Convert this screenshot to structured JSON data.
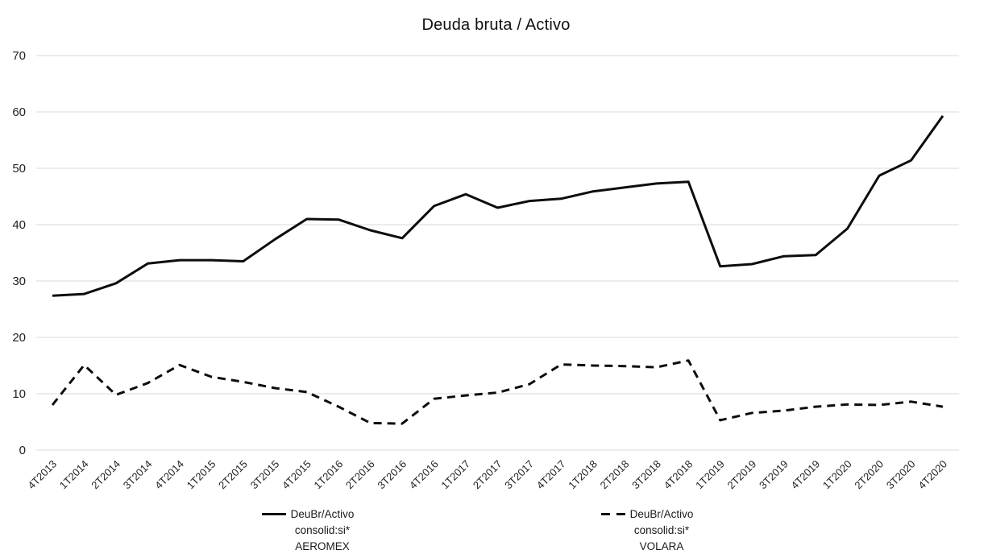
{
  "title": "Deuda bruta / Activo",
  "chart_data": {
    "type": "line",
    "title": "Deuda bruta / Activo",
    "xlabel": "",
    "ylabel": "",
    "ylim": [
      0,
      70
    ],
    "yticks": [
      0,
      10,
      20,
      30,
      40,
      50,
      60,
      70
    ],
    "grid": "horizontal",
    "legend_position": "bottom",
    "categories": [
      "4T2013",
      "1T2014",
      "2T2014",
      "3T2014",
      "4T2014",
      "1T2015",
      "2T2015",
      "3T2015",
      "4T2015",
      "1T2016",
      "2T2016",
      "3T2016",
      "4T2016",
      "1T2017",
      "2T2017",
      "3T2017",
      "4T2017",
      "1T2018",
      "2T2018",
      "3T2018",
      "4T2018",
      "1T2019",
      "2T2019",
      "3T2019",
      "4T2019",
      "1T2020",
      "2T2020",
      "3T2020",
      "4T2020"
    ],
    "series": [
      {
        "name": "DeuBr/Activo consolid:si* AEROMEX",
        "line_style": "solid",
        "color": "#0d0d0d",
        "values": [
          27.4,
          27.7,
          29.6,
          33.1,
          33.7,
          33.7,
          33.5,
          37.4,
          41.0,
          40.9,
          39.0,
          37.6,
          43.3,
          45.4,
          43.0,
          44.2,
          44.6,
          45.9,
          46.6,
          47.3,
          47.6,
          32.6,
          33.0,
          34.4,
          34.6,
          39.3,
          48.7,
          51.4,
          59.3
        ]
      },
      {
        "name": "DeuBr/Activo consolid:si* VOLARA",
        "line_style": "dashed",
        "color": "#0d0d0d",
        "values": [
          8.0,
          15.1,
          9.8,
          11.9,
          15.1,
          13.0,
          12.1,
          11.0,
          10.3,
          7.7,
          4.8,
          4.7,
          9.1,
          9.7,
          10.2,
          11.7,
          15.2,
          15.0,
          14.9,
          14.7,
          15.9,
          5.3,
          6.6,
          7.0,
          7.7,
          8.1,
          8.0,
          8.6,
          7.7
        ]
      }
    ],
    "legend": [
      {
        "marker": "solid",
        "lines": [
          "DeuBr/Activo",
          "consolid:si*",
          "AEROMEX"
        ]
      },
      {
        "marker": "dashed",
        "lines": [
          "DeuBr/Activo",
          "consolid:si*",
          "VOLARA"
        ]
      }
    ],
    "colors": {
      "line": "#0d0d0d",
      "gridline": "#d9d9d9",
      "tick_text": "#1f1f1f",
      "background": "#ffffff"
    }
  }
}
